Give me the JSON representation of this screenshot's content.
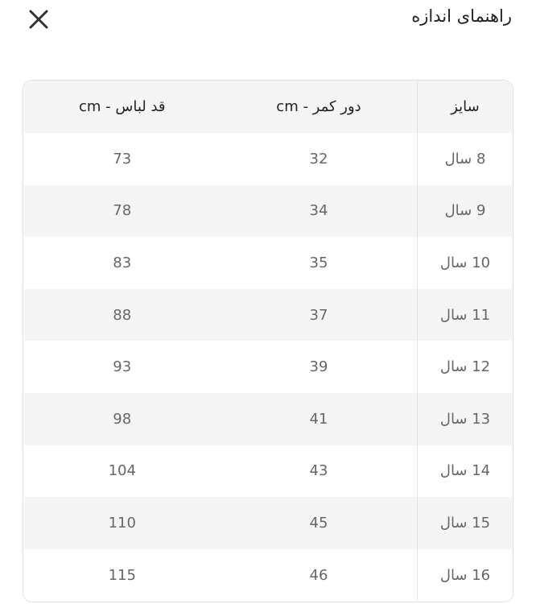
{
  "header": {
    "title": "راهنمای اندازه",
    "close_icon": "close-icon"
  },
  "table": {
    "columns": [
      "سایز",
      "دور کمر - cm",
      "قد لباس - cm"
    ],
    "rows": [
      {
        "size": "8 سال",
        "waist": "32",
        "length": "73"
      },
      {
        "size": "9 سال",
        "waist": "34",
        "length": "78"
      },
      {
        "size": "10 سال",
        "waist": "35",
        "length": "83"
      },
      {
        "size": "11 سال",
        "waist": "37",
        "length": "88"
      },
      {
        "size": "12 سال",
        "waist": "39",
        "length": "93"
      },
      {
        "size": "13 سال",
        "waist": "41",
        "length": "98"
      },
      {
        "size": "14 سال",
        "waist": "43",
        "length": "104"
      },
      {
        "size": "15 سال",
        "waist": "45",
        "length": "110"
      },
      {
        "size": "16 سال",
        "waist": "46",
        "length": "115"
      }
    ]
  }
}
